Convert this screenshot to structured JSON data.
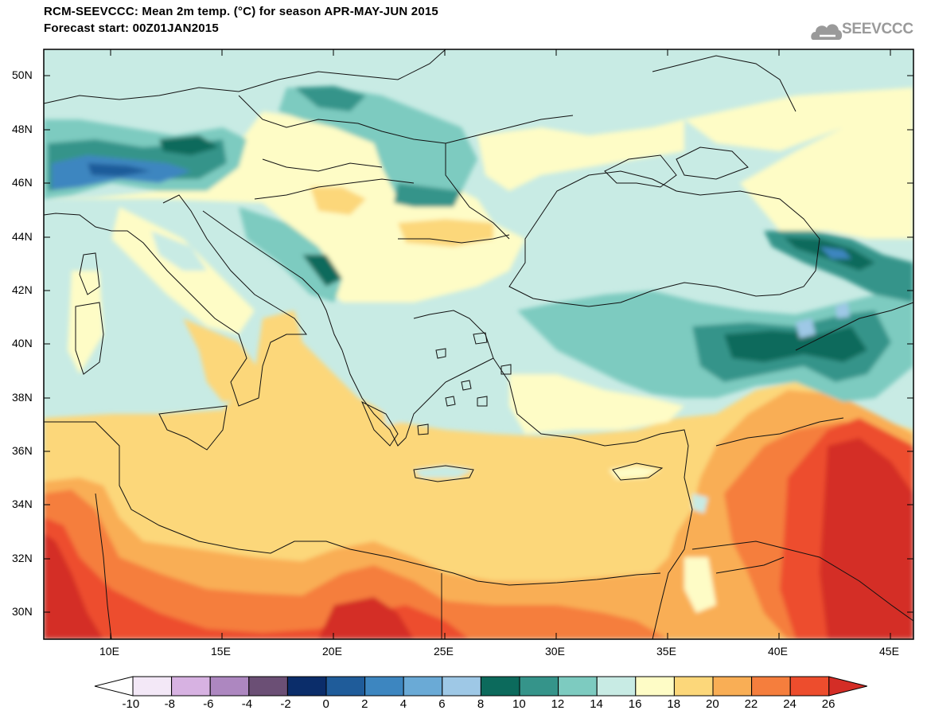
{
  "header": {
    "title": "RCM-SEEVCCC: Mean 2m temp. (°C) for season APR-MAY-JUN 2015",
    "subtitle": "Forecast start: 00Z01JAN2015",
    "logo_text": "SEEVCCC"
  },
  "map": {
    "lon_range": [
      7,
      46
    ],
    "lat_range": [
      29,
      51
    ],
    "lat_ticks": [
      "30N",
      "32N",
      "34N",
      "36N",
      "38N",
      "40N",
      "42N",
      "44N",
      "46N",
      "48N",
      "50N"
    ],
    "lon_ticks": [
      "10E",
      "15E",
      "20E",
      "25E",
      "30E",
      "35E",
      "40E",
      "45E"
    ]
  },
  "colorbar": {
    "ticks": [
      "-10",
      "-8",
      "-6",
      "-4",
      "-2",
      "0",
      "2",
      "4",
      "6",
      "8",
      "10",
      "12",
      "14",
      "16",
      "18",
      "20",
      "22",
      "24",
      "26"
    ],
    "colors": [
      "#ffffff",
      "#f3e8f7",
      "#d7b2e2",
      "#ad87c0",
      "#6b4f75",
      "#0b2d6a",
      "#1f5c9a",
      "#3d86c0",
      "#6aaad6",
      "#9ec8e6",
      "#0c6a5c",
      "#35948a",
      "#7dcbc0",
      "#c8ebe4",
      "#fefcc6",
      "#fcd77a",
      "#f9ae55",
      "#f57e3d",
      "#ed4d2d",
      "#d42d26"
    ]
  }
}
